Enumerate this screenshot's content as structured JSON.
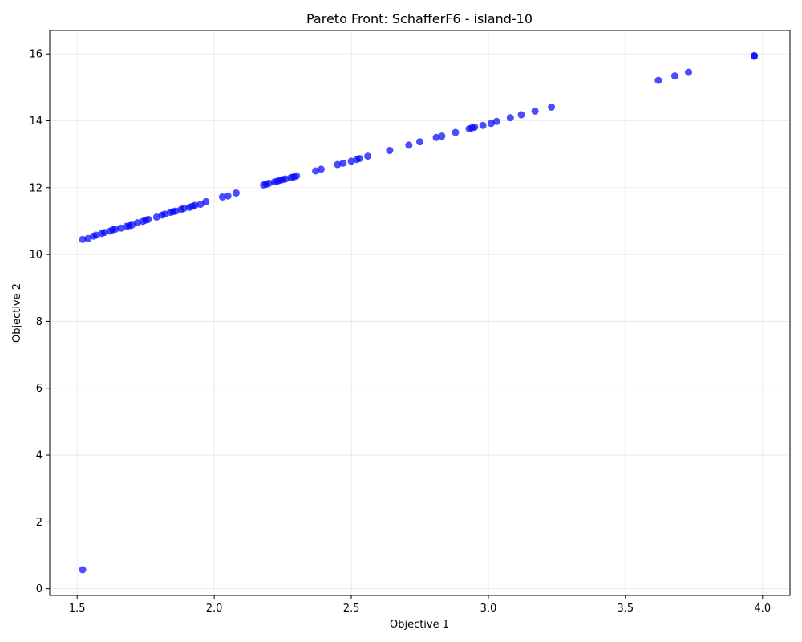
{
  "chart_data": {
    "type": "scatter",
    "title": "Pareto Front: SchafferF6 - island-10",
    "xlabel": "Objective 1",
    "ylabel": "Objective 2",
    "xlim": [
      1.4,
      4.1
    ],
    "ylim": [
      -0.2,
      16.7
    ],
    "xticks": [
      1.5,
      2.0,
      2.5,
      3.0,
      3.5,
      4.0
    ],
    "yticks": [
      0,
      2,
      4,
      6,
      8,
      10,
      12,
      14,
      16
    ],
    "xtick_labels": [
      "1.5",
      "2.0",
      "2.5",
      "3.0",
      "3.5",
      "4.0"
    ],
    "ytick_labels": [
      "0",
      "2",
      "4",
      "6",
      "8",
      "10",
      "12",
      "14",
      "16"
    ],
    "grid": true,
    "marker_color": "#0000ff",
    "marker_alpha": 0.7,
    "points": [
      [
        1.52,
        0.57
      ],
      [
        1.52,
        10.45
      ],
      [
        1.54,
        10.48
      ],
      [
        1.56,
        10.55
      ],
      [
        1.57,
        10.58
      ],
      [
        1.59,
        10.63
      ],
      [
        1.6,
        10.66
      ],
      [
        1.62,
        10.7
      ],
      [
        1.63,
        10.74
      ],
      [
        1.64,
        10.76
      ],
      [
        1.66,
        10.79
      ],
      [
        1.68,
        10.84
      ],
      [
        1.69,
        10.86
      ],
      [
        1.7,
        10.88
      ],
      [
        1.72,
        10.95
      ],
      [
        1.74,
        10.99
      ],
      [
        1.75,
        11.03
      ],
      [
        1.76,
        11.05
      ],
      [
        1.79,
        11.12
      ],
      [
        1.81,
        11.18
      ],
      [
        1.82,
        11.21
      ],
      [
        1.84,
        11.26
      ],
      [
        1.85,
        11.28
      ],
      [
        1.86,
        11.3
      ],
      [
        1.88,
        11.35
      ],
      [
        1.89,
        11.38
      ],
      [
        1.91,
        11.41
      ],
      [
        1.92,
        11.44
      ],
      [
        1.93,
        11.47
      ],
      [
        1.95,
        11.5
      ],
      [
        1.97,
        11.58
      ],
      [
        2.03,
        11.72
      ],
      [
        2.05,
        11.75
      ],
      [
        2.08,
        11.84
      ],
      [
        2.18,
        12.08
      ],
      [
        2.19,
        12.1
      ],
      [
        2.2,
        12.13
      ],
      [
        2.22,
        12.17
      ],
      [
        2.23,
        12.19
      ],
      [
        2.24,
        12.22
      ],
      [
        2.25,
        12.24
      ],
      [
        2.26,
        12.26
      ],
      [
        2.28,
        12.3
      ],
      [
        2.29,
        12.32
      ],
      [
        2.3,
        12.35
      ],
      [
        2.37,
        12.5
      ],
      [
        2.39,
        12.55
      ],
      [
        2.45,
        12.69
      ],
      [
        2.47,
        12.73
      ],
      [
        2.5,
        12.79
      ],
      [
        2.52,
        12.84
      ],
      [
        2.53,
        12.87
      ],
      [
        2.56,
        12.94
      ],
      [
        2.64,
        13.11
      ],
      [
        2.71,
        13.27
      ],
      [
        2.75,
        13.37
      ],
      [
        2.81,
        13.5
      ],
      [
        2.83,
        13.54
      ],
      [
        2.88,
        13.65
      ],
      [
        2.93,
        13.76
      ],
      [
        2.94,
        13.79
      ],
      [
        2.95,
        13.81
      ],
      [
        2.98,
        13.86
      ],
      [
        3.01,
        13.92
      ],
      [
        3.03,
        13.98
      ],
      [
        3.08,
        14.09
      ],
      [
        3.12,
        14.18
      ],
      [
        3.17,
        14.29
      ],
      [
        3.23,
        14.41
      ],
      [
        3.62,
        15.21
      ],
      [
        3.68,
        15.34
      ],
      [
        3.73,
        15.45
      ],
      [
        3.97,
        15.93
      ],
      [
        3.97,
        15.95
      ]
    ]
  }
}
